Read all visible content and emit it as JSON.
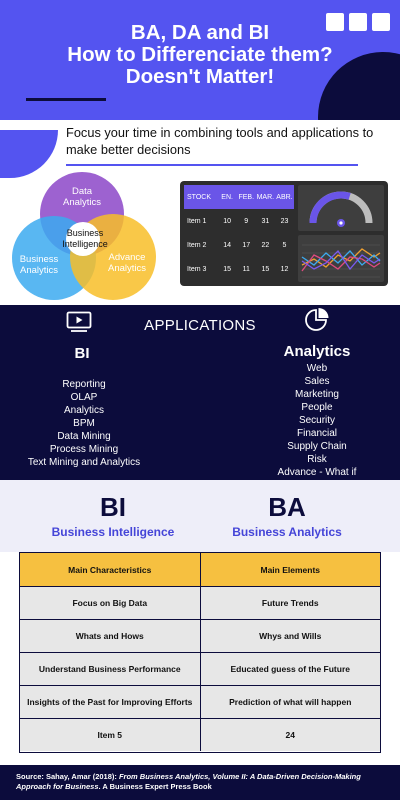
{
  "header": {
    "title_lines": [
      "BA, DA and BI",
      "How to Differenciate them?",
      "Doesn't Matter!"
    ]
  },
  "focus": {
    "text": "Focus your time in combining tools and applications to make better decisions"
  },
  "venn": {
    "data_analytics": [
      "Data",
      "Analytics"
    ],
    "business_analytics": [
      "Business",
      "Analytics"
    ],
    "advance_analytics": [
      "Advance",
      "Analytics"
    ],
    "business_intelligence": [
      "Business",
      "Intelligence"
    ]
  },
  "dashboard": {
    "headers": [
      "STOCK",
      "EN.",
      "FEB.",
      "MAR.",
      "ABR."
    ],
    "rows": [
      [
        "Item 1",
        "10",
        "9",
        "31",
        "23"
      ],
      [
        "Item 2",
        "14",
        "17",
        "22",
        "5"
      ],
      [
        "Item 3",
        "15",
        "11",
        "15",
        "12"
      ]
    ],
    "gauge_level": 0.6,
    "colors": {
      "accent": "#6a55e8",
      "panel": "#2d2d2d"
    }
  },
  "applications": {
    "title": "APPLICATIONS",
    "bi": {
      "label": "BI",
      "items": [
        "Reporting",
        "OLAP",
        "Analytics",
        "BPM",
        "Data Mining",
        "Process Mining",
        "Text Mining and Analytics"
      ]
    },
    "analytics": {
      "label": "Analytics",
      "items": [
        "Web",
        "Sales",
        "Marketing",
        "People",
        "Security",
        "Financial",
        "Supply Chain",
        "Risk",
        "Advance - What if"
      ]
    },
    "icons": [
      "monitor-play-icon",
      "pie-chart-icon"
    ]
  },
  "comparison": {
    "bi_short": "BI",
    "bi_long": "Business Intelligence",
    "ba_short": "BA",
    "ba_long": "Business Analytics",
    "rows": [
      [
        "Main Characteristics",
        "Main Elements"
      ],
      [
        "Focus on Big Data",
        "Future Trends"
      ],
      [
        "Whats and Hows",
        "Whys and Wills"
      ],
      [
        "Understand Business Performance",
        "Educated guess of the Future"
      ],
      [
        "Insights of the Past for Improving Efforts",
        "Prediction of what will happen"
      ],
      [
        "Item 5",
        "24"
      ]
    ]
  },
  "source": {
    "prefix": "Source: Sahay, Amar (2018): ",
    "title": "From Business Analytics, Volume II: A Data-Driven Decision-Making Approach for Business",
    "suffix": ". A Business Expert Press Book"
  },
  "colors": {
    "primary": "#5454f0",
    "navy": "#0c0c3c",
    "gold": "#f6c040",
    "purple_circle": "#8c46c8",
    "blue_circle": "#3caaf0",
    "yellow_circle": "#f8be28"
  }
}
